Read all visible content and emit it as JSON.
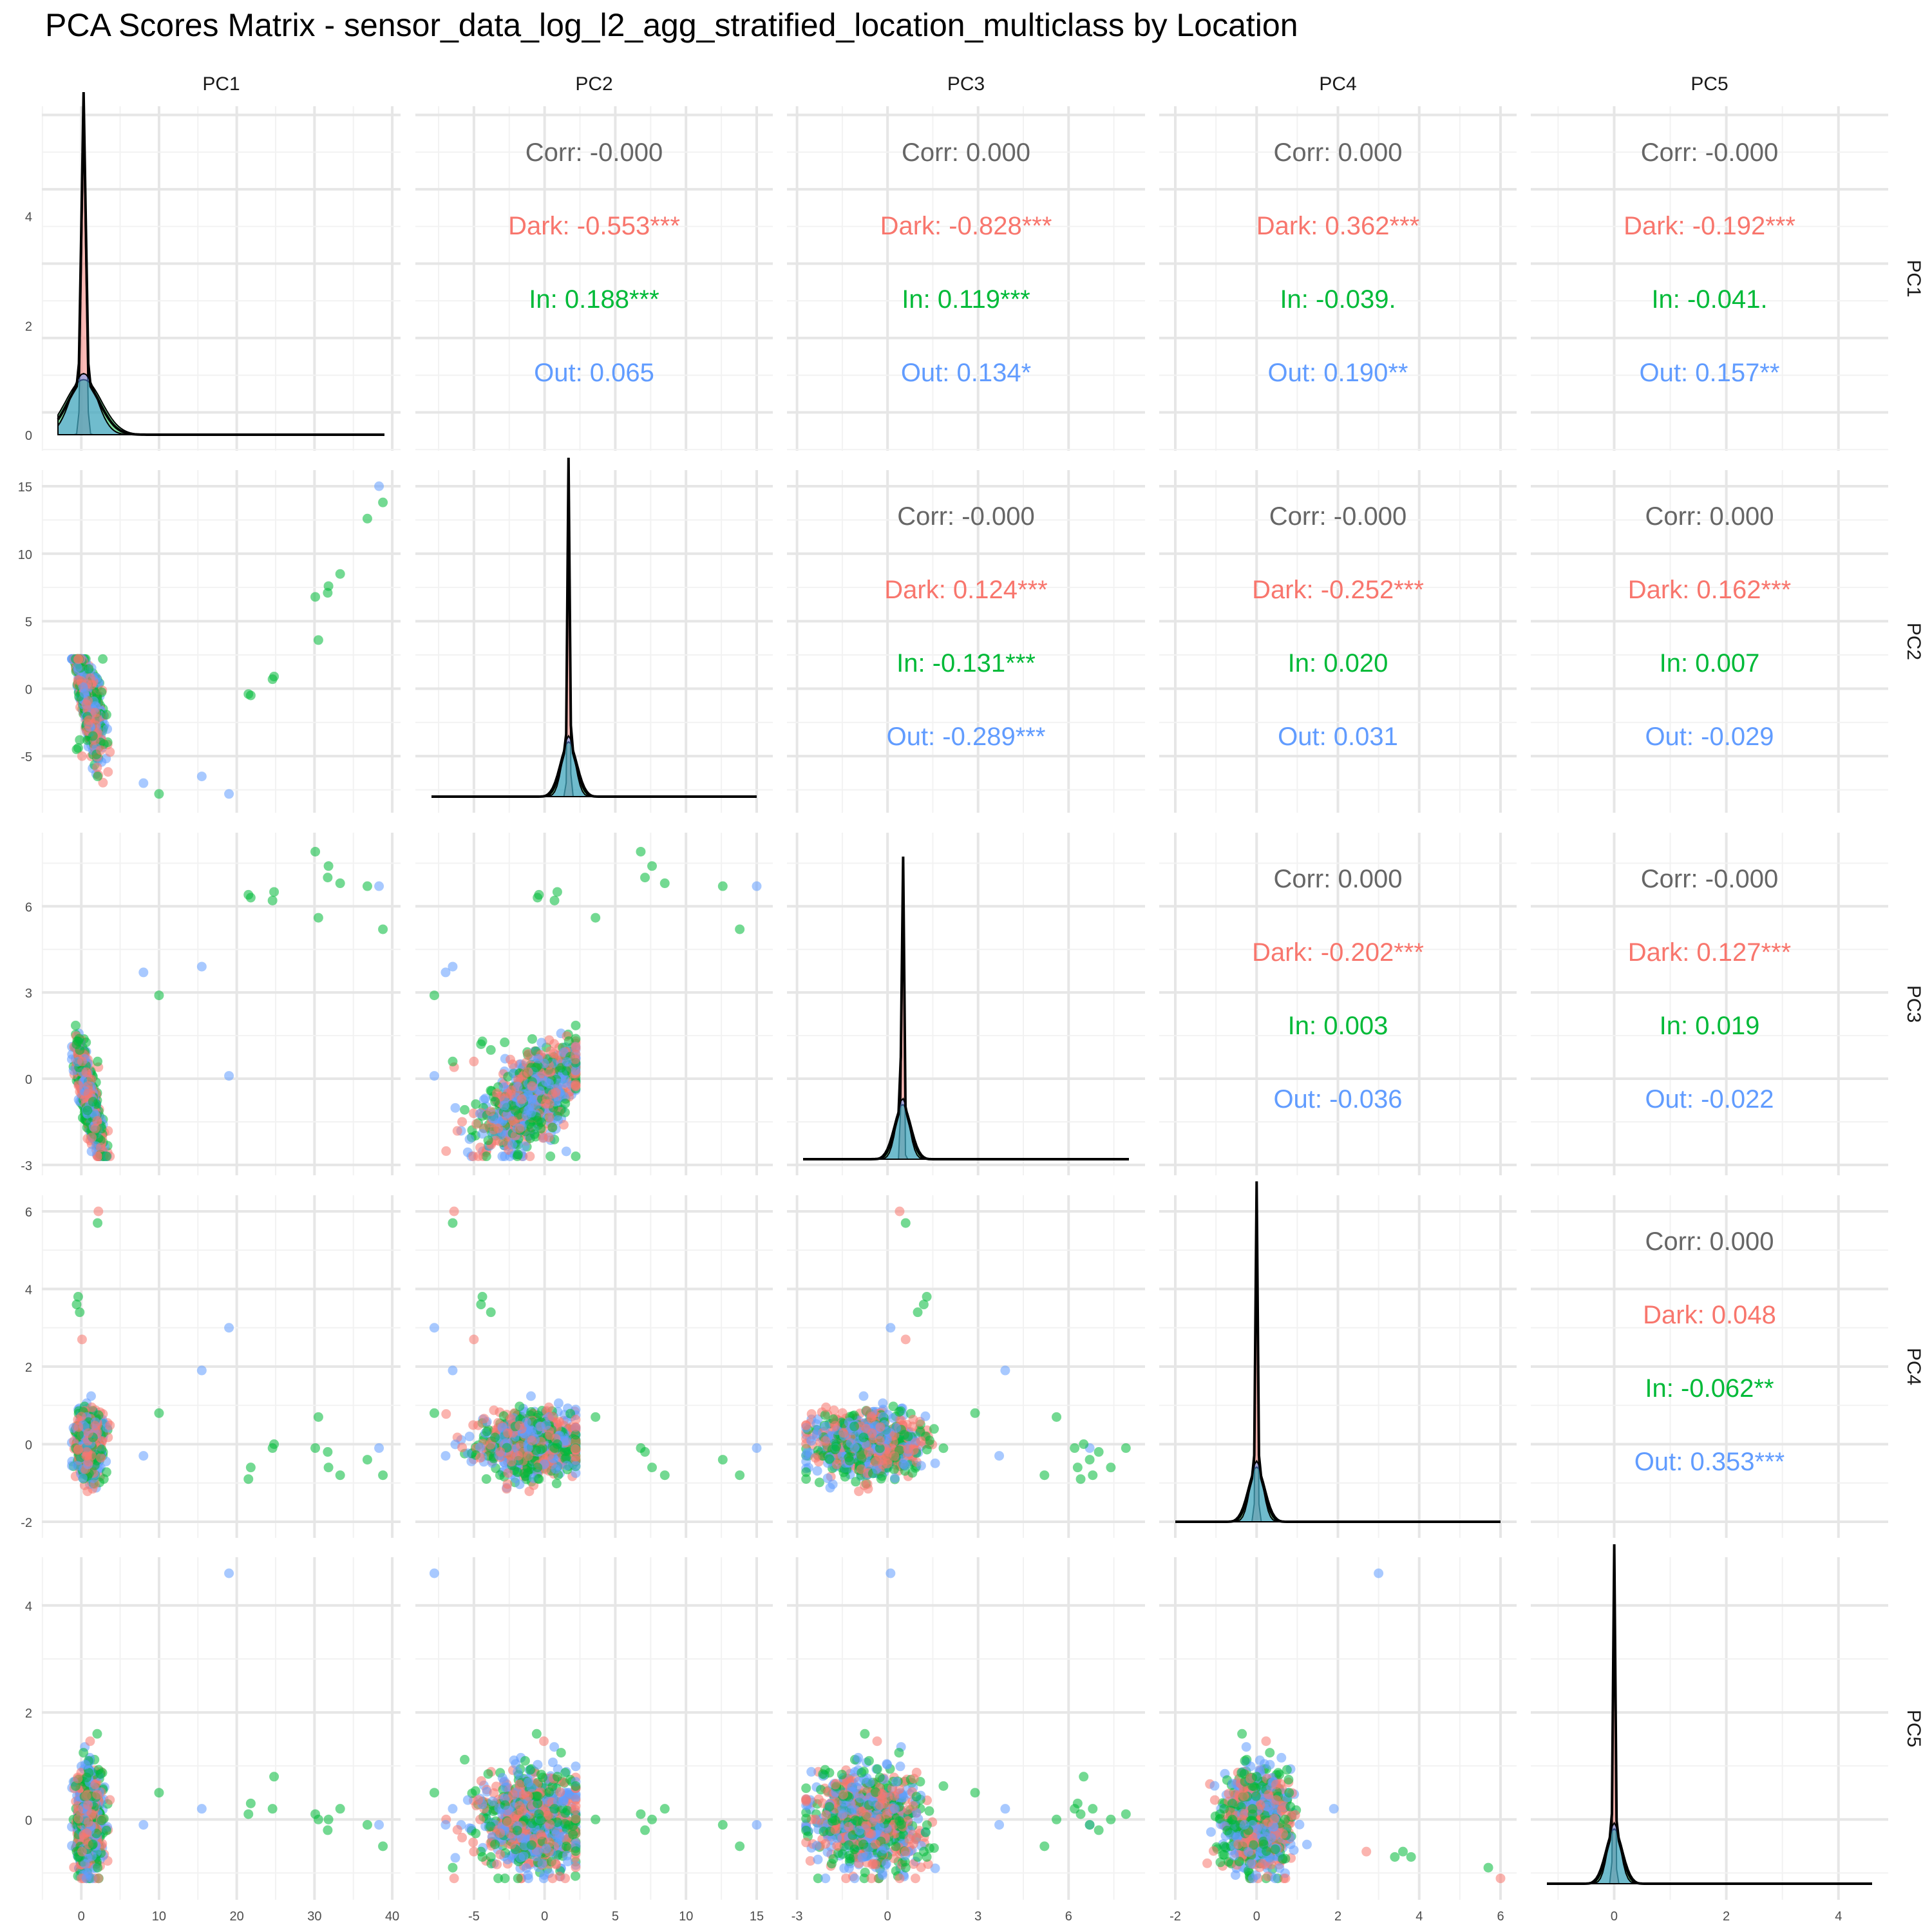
{
  "title": "PCA Scores Matrix - sensor_data_log_l2_agg_stratified_location_multiclass by Location",
  "colors": {
    "Dark": "#F8766D",
    "In": "#00BA38",
    "Out": "#619CFF",
    "Corr": "#666666",
    "grid_major": "#E6E6E6",
    "grid_minor": "#F2F2F2",
    "density_line": "#000000"
  },
  "chart_data": {
    "type": "scatter",
    "variables": [
      "PC1",
      "PC2",
      "PC3",
      "PC4",
      "PC5"
    ],
    "groups": [
      "Dark",
      "In",
      "Out"
    ],
    "axis_ranges": {
      "PC1": [
        -3,
        39
      ],
      "PC2": [
        -8,
        15
      ],
      "PC3": [
        -2.8,
        8
      ],
      "PC4": [
        -2,
        6
      ],
      "PC5": [
        -1.2,
        4.6
      ]
    },
    "ticks": {
      "PC1": [
        0,
        10,
        20,
        30,
        40
      ],
      "PC2": [
        -5,
        0,
        5,
        10,
        15
      ],
      "PC3": [
        -3,
        0,
        3,
        6
      ],
      "PC4": [
        -2,
        0,
        2,
        4,
        6
      ],
      "PC5": [
        0,
        2,
        4
      ]
    },
    "density_y_ticks": [
      0,
      2,
      4
    ],
    "density_peak_pc1": 5.6,
    "grid": true,
    "correlations": [
      {
        "row": "PC1",
        "col": "PC2",
        "corr": "Corr: -0.000",
        "Dark": "Dark: -0.553***",
        "In": "In: 0.188***",
        "Out": "Out: 0.065"
      },
      {
        "row": "PC1",
        "col": "PC3",
        "corr": "Corr: 0.000",
        "Dark": "Dark: -0.828***",
        "In": "In: 0.119***",
        "Out": "Out: 0.134*"
      },
      {
        "row": "PC1",
        "col": "PC4",
        "corr": "Corr: 0.000",
        "Dark": "Dark: 0.362***",
        "In": "In: -0.039.",
        "Out": "Out: 0.190**"
      },
      {
        "row": "PC1",
        "col": "PC5",
        "corr": "Corr: -0.000",
        "Dark": "Dark: -0.192***",
        "In": "In: -0.041.",
        "Out": "Out: 0.157**"
      },
      {
        "row": "PC2",
        "col": "PC3",
        "corr": "Corr: -0.000",
        "Dark": "Dark: 0.124***",
        "In": "In: -0.131***",
        "Out": "Out: -0.289***"
      },
      {
        "row": "PC2",
        "col": "PC4",
        "corr": "Corr: -0.000",
        "Dark": "Dark: -0.252***",
        "In": "In: 0.020",
        "Out": "Out: 0.031"
      },
      {
        "row": "PC2",
        "col": "PC5",
        "corr": "Corr: 0.000",
        "Dark": "Dark: 0.162***",
        "In": "In: 0.007",
        "Out": "Out: -0.029"
      },
      {
        "row": "PC3",
        "col": "PC4",
        "corr": "Corr: 0.000",
        "Dark": "Dark: -0.202***",
        "In": "In: 0.003",
        "Out": "Out: -0.036"
      },
      {
        "row": "PC3",
        "col": "PC5",
        "corr": "Corr: -0.000",
        "Dark": "Dark: 0.127***",
        "In": "In: 0.019",
        "Out": "Out: -0.022"
      },
      {
        "row": "PC4",
        "col": "PC5",
        "corr": "Corr: 0.000",
        "Dark": "Dark: 0.048",
        "In": "In: -0.062**",
        "Out": "Out: 0.353***"
      }
    ],
    "outlier_points": [
      {
        "group": "Out",
        "PC1": 38.3,
        "PC2": 15.0,
        "PC3": 6.7,
        "PC4": -0.1,
        "PC5": -0.1
      },
      {
        "group": "In",
        "PC1": 38.8,
        "PC2": 13.8,
        "PC3": 5.2,
        "PC4": -0.8,
        "PC5": -0.5
      },
      {
        "group": "In",
        "PC1": 36.8,
        "PC2": 12.6,
        "PC3": 6.7,
        "PC4": -0.4,
        "PC5": -0.1
      },
      {
        "group": "In",
        "PC1": 33.3,
        "PC2": 8.5,
        "PC3": 6.8,
        "PC4": -0.8,
        "PC5": 0.2
      },
      {
        "group": "In",
        "PC1": 31.8,
        "PC2": 7.6,
        "PC3": 7.4,
        "PC4": -0.6,
        "PC5": 0.0
      },
      {
        "group": "In",
        "PC1": 31.7,
        "PC2": 7.1,
        "PC3": 7.0,
        "PC4": -0.2,
        "PC5": -0.2
      },
      {
        "group": "In",
        "PC1": 30.1,
        "PC2": 6.8,
        "PC3": 7.9,
        "PC4": -0.1,
        "PC5": 0.1
      },
      {
        "group": "In",
        "PC1": 30.5,
        "PC2": 3.6,
        "PC3": 5.6,
        "PC4": 0.7,
        "PC5": 0.0
      },
      {
        "group": "In",
        "PC1": 24.8,
        "PC2": 0.9,
        "PC3": 6.5,
        "PC4": 0.0,
        "PC5": 0.8
      },
      {
        "group": "In",
        "PC1": 24.6,
        "PC2": 0.7,
        "PC3": 6.2,
        "PC4": -0.1,
        "PC5": 0.2
      },
      {
        "group": "In",
        "PC1": 21.8,
        "PC2": -0.5,
        "PC3": 6.3,
        "PC4": -0.6,
        "PC5": 0.3
      },
      {
        "group": "In",
        "PC1": 21.5,
        "PC2": -0.4,
        "PC3": 6.4,
        "PC4": -0.9,
        "PC5": 0.1
      },
      {
        "group": "Out",
        "PC1": 19.0,
        "PC2": -7.8,
        "PC3": 0.1,
        "PC4": 3.0,
        "PC5": 4.6
      },
      {
        "group": "Out",
        "PC1": 15.5,
        "PC2": -6.5,
        "PC3": 3.9,
        "PC4": 1.9,
        "PC5": 0.2
      },
      {
        "group": "In",
        "PC1": 10.0,
        "PC2": -7.8,
        "PC3": 2.9,
        "PC4": 0.8,
        "PC5": 0.5
      },
      {
        "group": "Out",
        "PC1": 8.0,
        "PC2": -7.0,
        "PC3": 3.7,
        "PC4": -0.3,
        "PC5": -0.1
      },
      {
        "group": "Dark",
        "PC1": 2.2,
        "PC2": -6.4,
        "PC3": 0.4,
        "PC4": 6.0,
        "PC5": -1.1
      },
      {
        "group": "In",
        "PC1": 2.1,
        "PC2": -6.5,
        "PC3": 0.6,
        "PC4": 5.7,
        "PC5": -0.9
      },
      {
        "group": "In",
        "PC1": -0.4,
        "PC2": -4.4,
        "PC3": 1.3,
        "PC4": 3.8,
        "PC5": -0.7
      },
      {
        "group": "In",
        "PC1": -0.6,
        "PC2": -4.5,
        "PC3": 1.2,
        "PC4": 3.6,
        "PC5": -0.6
      },
      {
        "group": "In",
        "PC1": -0.2,
        "PC2": -3.8,
        "PC3": 1.0,
        "PC4": 3.4,
        "PC5": -0.7
      },
      {
        "group": "Dark",
        "PC1": 0.1,
        "PC2": -5.0,
        "PC3": 0.6,
        "PC4": 2.7,
        "PC5": -0.6
      }
    ]
  }
}
